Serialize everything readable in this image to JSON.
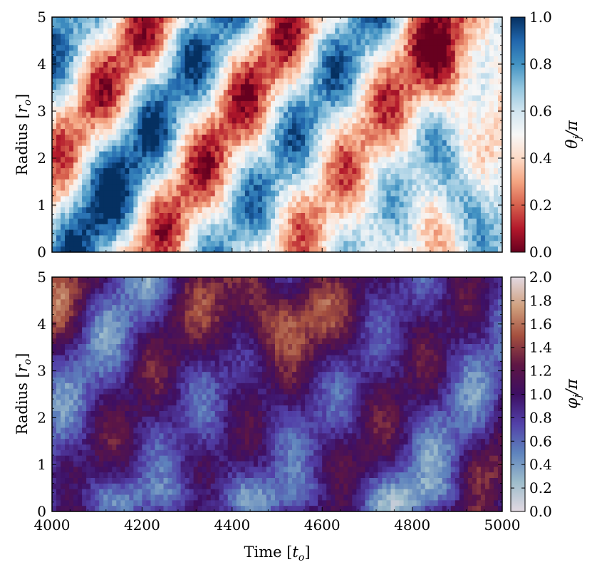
{
  "chart_data": [
    {
      "type": "heatmap",
      "panel": "top",
      "xlabel": "",
      "ylabel": "Radius [r_o]",
      "ylabel_display": {
        "prefix": "Radius [",
        "symbol": "r",
        "sub": "o",
        "suffix": "]"
      },
      "xlim": [
        4000,
        5000
      ],
      "ylim": [
        0,
        5
      ],
      "yticks": [
        "0",
        "1",
        "2",
        "3",
        "4",
        "5"
      ],
      "colormap": "RdBu",
      "colormap_stops": [
        "#67001f",
        "#b2182b",
        "#d6604d",
        "#f4a582",
        "#fddbc7",
        "#f7f7f7",
        "#d1e5f0",
        "#92c5de",
        "#4393c3",
        "#2166ac",
        "#053061"
      ],
      "colorbar": {
        "label": "θ̄_j/π",
        "label_display": {
          "symbol": "θ",
          "sub": "j",
          "suffix": "/π"
        },
        "range": [
          0.0,
          1.0
        ],
        "ticks": [
          "0.0",
          "0.2",
          "0.4",
          "0.6",
          "0.8",
          "1.0"
        ]
      },
      "description_of_field": "mean polar angle of jet vs radius and time; diagonal streaks drifting outward in time"
    },
    {
      "type": "heatmap",
      "panel": "bottom",
      "xlabel": "Time [t_o]",
      "xlabel_display": {
        "prefix": "Time [",
        "symbol": "t",
        "sub": "o",
        "suffix": "]"
      },
      "ylabel": "Radius [r_o]",
      "ylabel_display": {
        "prefix": "Radius [",
        "symbol": "r",
        "sub": "o",
        "suffix": "]"
      },
      "xlim": [
        4000,
        5000
      ],
      "ylim": [
        0,
        5
      ],
      "xticks": [
        "4000",
        "4200",
        "4400",
        "4600",
        "4800",
        "5000"
      ],
      "yticks": [
        "0",
        "1",
        "2",
        "3",
        "4",
        "5"
      ],
      "colormap": "twilight",
      "colormap_stops": [
        "#e2d9e2",
        "#9ebdcb",
        "#5e83bd",
        "#5240a8",
        "#3d0f63",
        "#5e1644",
        "#a5503f",
        "#d0a07e",
        "#e2d9e2"
      ],
      "colorbar": {
        "label": "φ̄_j/π",
        "label_display": {
          "symbol": "φ",
          "sub": "j",
          "suffix": "/π"
        },
        "range": [
          0.0,
          2.0
        ],
        "ticks": [
          "0.0",
          "0.2",
          "0.4",
          "0.6",
          "0.8",
          "1.0",
          "1.2",
          "1.4",
          "1.6",
          "1.8",
          "2.0"
        ]
      },
      "description_of_field": "mean azimuthal angle of jet vs radius and time; cyclic colormap with diagonal streaks"
    }
  ]
}
